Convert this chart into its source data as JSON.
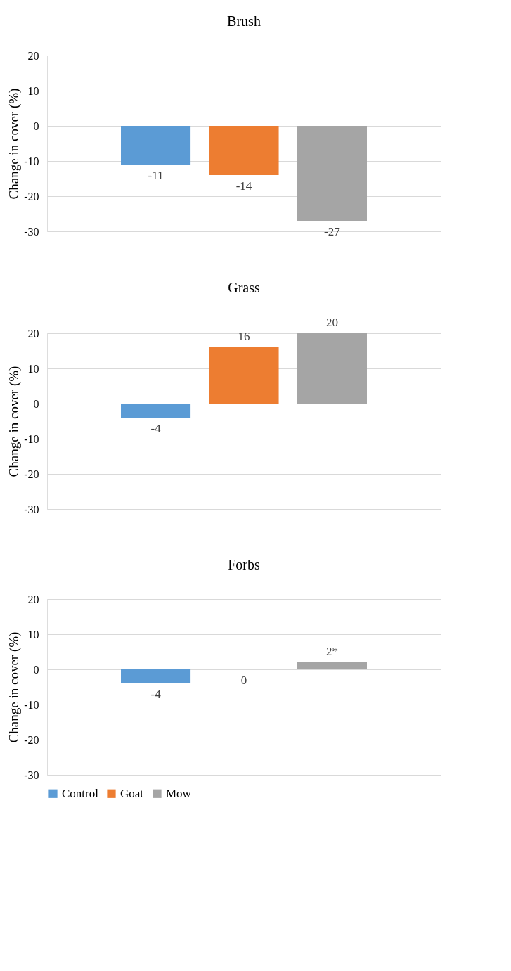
{
  "chart_data": [
    {
      "type": "bar",
      "title": "Brush",
      "ylabel": "Change in cover (%)",
      "categories": [
        null
      ],
      "series": [
        {
          "color": "#5b9bd5",
          "values": [
            -11
          ]
        },
        {
          "color": "#ed7d31",
          "values": [
            -14
          ]
        },
        {
          "color": "#a5a5a5",
          "values": [
            -27
          ]
        }
      ],
      "ylim": [
        -30,
        20
      ],
      "yticks": [
        -30,
        -20,
        -10,
        0,
        10,
        20
      ],
      "grid": "y",
      "legend": false,
      "tick_labels": "y",
      "data_labels": true
    },
    {
      "type": "bar",
      "title": "Grass",
      "ylabel": "Change in cover (%)",
      "categories": [
        null
      ],
      "series": [
        {
          "color": "#5b9bd5",
          "values": [
            -4
          ]
        },
        {
          "color": "#ed7d31",
          "values": [
            16
          ]
        },
        {
          "color": "#a5a5a5",
          "values": [
            20
          ]
        }
      ],
      "ylim": [
        -30,
        20
      ],
      "yticks": [
        -30,
        -20,
        -10,
        0,
        10,
        20
      ],
      "grid": "y",
      "legend": false,
      "tick_labels": "y",
      "data_labels": true
    },
    {
      "type": "bar",
      "title": "Forbs",
      "ylabel": "Change in cover (%)",
      "categories": [
        null
      ],
      "series": [
        {
          "name": "Control",
          "color": "#5b9bd5",
          "values": [
            -4
          ],
          "value_labels": [
            "-4"
          ]
        },
        {
          "name": "Goat",
          "color": "#ed7d31",
          "values": [
            0
          ],
          "value_labels": [
            "0"
          ]
        },
        {
          "name": "Mow",
          "color": "#a5a5a5",
          "values": [
            2
          ],
          "value_labels": [
            "2*"
          ]
        }
      ],
      "ylim": [
        -30,
        20
      ],
      "yticks": [
        -30,
        -20,
        -10,
        0,
        10,
        20
      ],
      "grid": "y",
      "legend": "bottom",
      "tick_labels": "y"
    }
  ]
}
